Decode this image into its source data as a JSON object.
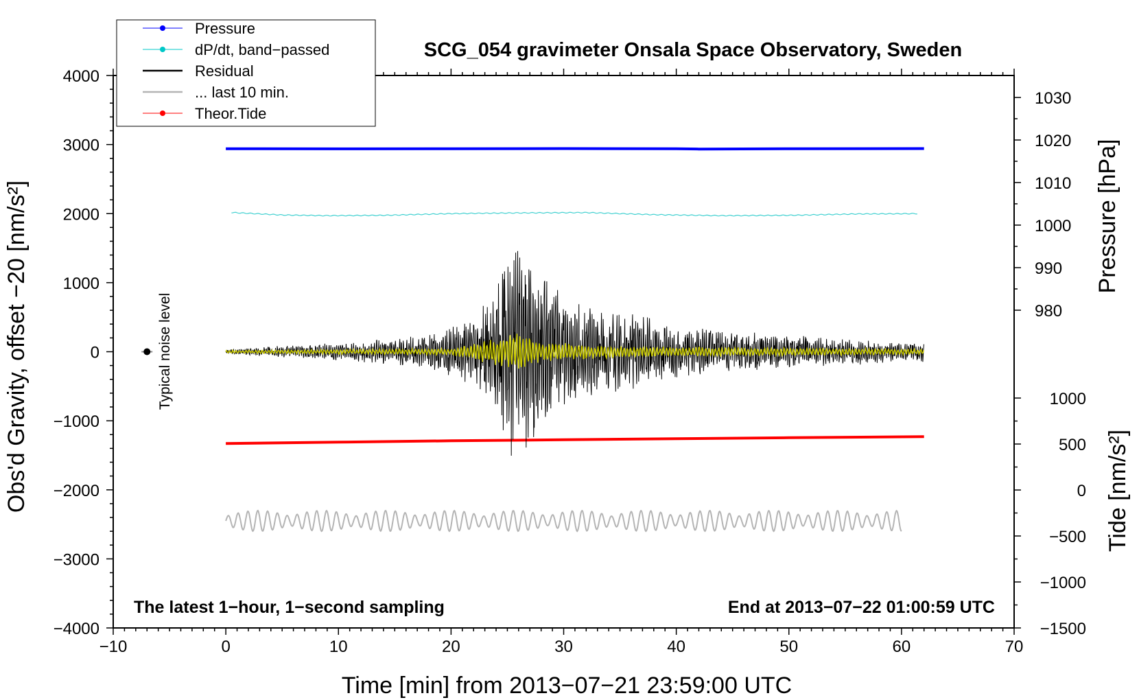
{
  "chart_data": {
    "type": "line",
    "title": "SCG_054 gravimeter Onsala Space Observatory, Sweden",
    "xlabel": "Time [min] from 2013−07−21 23:59:00 UTC",
    "ylabel_left": "Obs'd Gravity, offset −20 [nm/s²]",
    "ylabel_right_pressure": "Pressure [hPa]",
    "ylabel_right_tide": "Tide [nm/s²]",
    "xlim": [
      -10,
      70
    ],
    "ylim_left": [
      -4000,
      4000
    ],
    "pressure_axis_range": [
      980,
      1030
    ],
    "tide_axis_range": [
      -1500,
      1000
    ],
    "x_ticks": [
      "−10",
      "0",
      "10",
      "20",
      "30",
      "40",
      "50",
      "60",
      "70"
    ],
    "y_ticks_left": [
      "−4000",
      "−3000",
      "−2000",
      "−1000",
      "0",
      "1000",
      "2000",
      "3000",
      "4000"
    ],
    "y_ticks_pressure": [
      "980",
      "990",
      "1000",
      "1010",
      "1020",
      "1030"
    ],
    "y_ticks_tide": [
      "−1500",
      "−1000",
      "−500",
      "0",
      "500",
      "1000"
    ],
    "annotation_left": "The latest 1−hour, 1−second sampling",
    "annotation_right": "End at 2013−07−22 01:00:59 UTC",
    "noise_label": "Typical noise level",
    "noise_marker": {
      "x": -7,
      "y": 0
    },
    "legend_position": "top-left",
    "legend": [
      {
        "label": "Pressure",
        "color": "#0000ff",
        "marker": true
      },
      {
        "label": "dP/dt, band−passed",
        "color": "#00c8c8",
        "marker": true
      },
      {
        "label": "Residual",
        "color": "#000000",
        "marker": false
      },
      {
        "label": "... last 10 min.",
        "color": "#b4b4b4",
        "marker": false
      },
      {
        "label": "Theor.Tide",
        "color": "#ff0000",
        "marker": true
      }
    ],
    "series": [
      {
        "name": "Pressure",
        "color": "#0000ff",
        "x": [
          0,
          10,
          20,
          30,
          40,
          42,
          50,
          62
        ],
        "y": [
          2940,
          2938,
          2940,
          2942,
          2940,
          2935,
          2940,
          2942
        ]
      },
      {
        "name": "dP/dt, band−passed",
        "color": "#40d0d0",
        "x": [
          0,
          5,
          9,
          14,
          20,
          26,
          32,
          38,
          44,
          50,
          56,
          62
        ],
        "y": [
          2020,
          1980,
          1970,
          1975,
          2000,
          2010,
          2015,
          1985,
          1970,
          1975,
          1995,
          2000
        ]
      },
      {
        "name": "Theor.Tide",
        "color": "#ff0000",
        "x": [
          0,
          10,
          20,
          30,
          40,
          50,
          62
        ],
        "y": [
          -1330,
          -1310,
          -1290,
          -1275,
          -1260,
          -1245,
          -1230
        ]
      },
      {
        "name": "Residual",
        "color": "#000000",
        "envelope": {
          "x": [
            0,
            6,
            12,
            18,
            22,
            24,
            25,
            26,
            28,
            30,
            35,
            40,
            45,
            50,
            55,
            60,
            62
          ],
          "amplitude": [
            30,
            100,
            150,
            250,
            500,
            950,
            1700,
            1600,
            1200,
            800,
            600,
            400,
            300,
            250,
            200,
            150,
            150
          ]
        }
      },
      {
        "name": "... last 10 min.",
        "color": "#b4b4b4",
        "x_range": [
          0,
          60
        ],
        "center": -2450,
        "amplitude": 150
      },
      {
        "name": "band-passed residual",
        "color": "#cccc00",
        "envelope": {
          "x": [
            0,
            20,
            24,
            26,
            28,
            35,
            62
          ],
          "amplitude": [
            20,
            50,
            200,
            300,
            150,
            80,
            40
          ]
        }
      }
    ]
  }
}
